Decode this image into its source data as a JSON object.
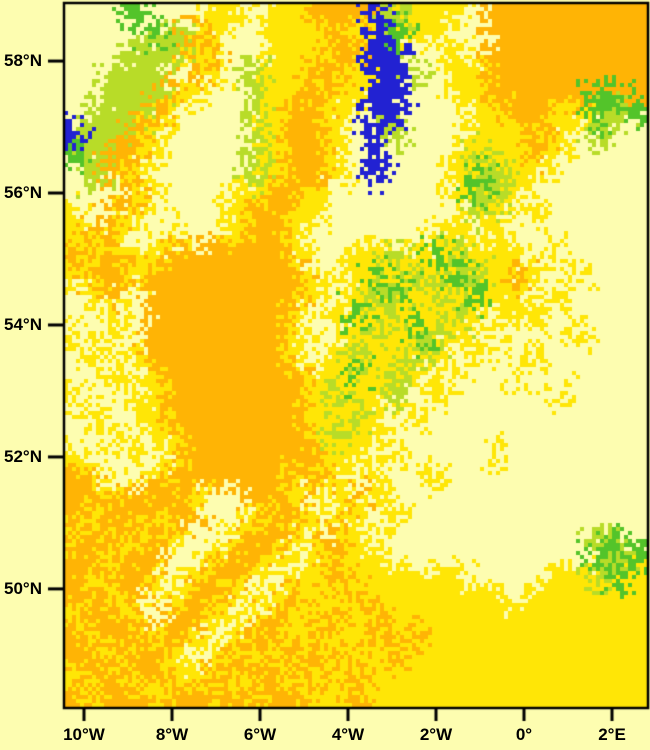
{
  "figure": {
    "background_color": "#FDFDB0",
    "frame_color": "#000000",
    "tick_color": "#000000"
  },
  "chart_data": {
    "type": "heatmap",
    "title": "",
    "xlabel": "",
    "ylabel": "",
    "grid_on": false,
    "legend": null,
    "lon_range": [
      -10.4545,
      2.8182
    ],
    "lat_range": [
      48.195,
      58.88
    ],
    "x_axis": {
      "ticks": [
        {
          "label": "10°W",
          "lon": -10
        },
        {
          "label": "8°W",
          "lon": -8
        },
        {
          "label": "6°W",
          "lon": -6
        },
        {
          "label": "4°W",
          "lon": -4
        },
        {
          "label": "2°W",
          "lon": -2
        },
        {
          "label": "0°",
          "lon": 0
        },
        {
          "label": "2°E",
          "lon": 2
        }
      ]
    },
    "y_axis": {
      "ticks": [
        {
          "label": "58°N",
          "lat": 58
        },
        {
          "label": "56°N",
          "lat": 56
        },
        {
          "label": "54°N",
          "lat": 54
        },
        {
          "label": "52°N",
          "lat": 52
        },
        {
          "label": "50°N",
          "lat": 50
        }
      ]
    },
    "palette": {
      ".": "#FDFDB0",
      "y": "#FFE606",
      "o": "#FFB405",
      "l": "#B8DC28",
      "g": "#53C42A",
      "b": "#2222D2"
    },
    "grid_cols": 29,
    "grid_rows": 35,
    "grid": [
      "...g...yy.yyoooblyyy.oooooooo",
      "....gloy..yyyoybgyy..oooooooo",
      "...lllyo..yyyoobb..y.oooooooo",
      "..lll.oy.lyyooybbl.yyoooooooo",
      "..llloy..lyyoyybb..yyoooooggo",
      ".llloy...lyooy.bb...yyooyyglg",
      "blloy....lyooy.bl...yyyoy.l..",
      "glooy....lyooy.b...ylyyoy....",
      ".loy.....lyooy.b...yglyy.....",
      "...oy...yyooy......ygly......",
      "y.oy....yooyy.......ly.y.....",
      "yoy..y..yooy......yy.y.......",
      "oyoyyooooooy..yylyglyyy.y....",
      "yooyooooooooy.ygylyglyoy.y...",
      ".yo.ooooooooy.ylgylygyy.y....",
      "..y.oooooooy.ygylyyly.yy.....",
      "y.y.oooooooy..ylygly.y...y...",
      ".y.yoooooooy.ylyyly.y..y.....",
      "..y.yoooooooyygyly.y..y......",
      "y..yyoooooooylyyl.y.....y....",
      ".y..yoooooooyyly.y...........",
      "..y.yyooooooylyy.............",
      "y..y.yoooooooyy.y....y.......",
      "oy..yooooooyoy.y..y..........",
      "ooyoooy..ooy.yoy.............",
      "oyooyoo..yooy.y.y............",
      "yooyoy..yooy.oy...........lg.",
      "ooyoo..yooy.yoyy..........glg",
      "oyooy.yooy.yyoyyyyyy....yylgy",
      "ooyo.yooy.yoyyoyyyyyyy.yyyyyy",
      "yooy.ooy.yoyyoyoyyyyyyyyyyyyy",
      "oyooyoy.yooyoyyoyoyyyyyyyyyyy",
      "ooyooy.yoyyoyoyyoyyyyyyyyyyyy",
      "yooyoyyoyooyoyoyyyyyyyyyyyyyy",
      "oyooyooyoyooyyoyyyyyyyyyyyyyy"
    ]
  }
}
